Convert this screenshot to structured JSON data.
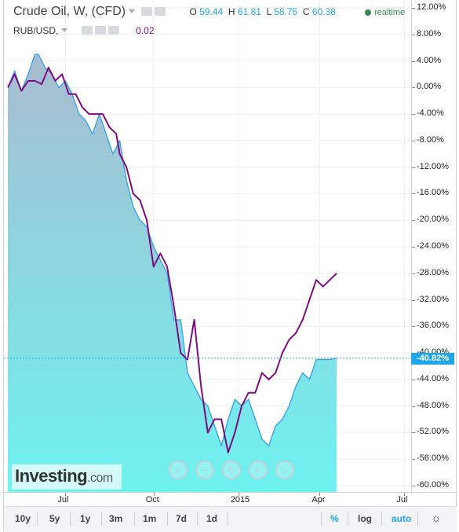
{
  "legend": {
    "symbol": "Crude Oil, W, (CFD)",
    "ohlc": [
      {
        "key": "O",
        "value": "59.44"
      },
      {
        "key": "H",
        "value": "61.81"
      },
      {
        "key": "L",
        "value": "58.75"
      },
      {
        "key": "C",
        "value": "60.38"
      }
    ],
    "compare_symbol": "RUB/USD,",
    "compare_value": "0.02",
    "realtime": "realtime"
  },
  "price_tag": "-40.82%",
  "logo": {
    "brand": "Investing",
    "domain": ".com"
  },
  "nav_buttons": [
    "‹",
    "−",
    "↻",
    "+",
    "›"
  ],
  "footer": {
    "ranges": [
      "10y",
      "5y",
      "1y",
      "3m",
      "1m",
      "7d",
      "1d"
    ],
    "right": [
      "%",
      "log",
      "auto"
    ],
    "active": [
      "%",
      "auto"
    ]
  },
  "colors": {
    "oil_line": "#3ea3e0",
    "rub_line": "#7b0d7e",
    "fill_top": "#a9bcd0",
    "fill_bottom": "#6ef2f0",
    "accent": "#1ea7e8"
  },
  "chart_data": {
    "type": "line",
    "title": "",
    "y_axis_ticks": [
      "12.00%",
      "8.00%",
      "4.00%",
      "0.00%",
      "-4.00%",
      "-8.00%",
      "-12.00%",
      "-16.00%",
      "-20.00%",
      "-24.00%",
      "-28.00%",
      "-32.00%",
      "-36.00%",
      "-40.00%",
      "-44.00%",
      "-48.00%",
      "-52.00%",
      "-56.00%",
      "-60.00%"
    ],
    "x_axis_ticks": [
      "Jul",
      "Oct",
      "2015",
      "Apr",
      "Jul"
    ],
    "ylim": [
      -61.5,
      13
    ],
    "xlim": [
      0,
      119
    ],
    "x_ticks_pos": [
      17,
      43,
      68,
      92,
      117
    ],
    "series": [
      {
        "name": "Crude Oil, W, (CFD)",
        "x": [
          0,
          2,
          4,
          6,
          8,
          9,
          11,
          13,
          15,
          17,
          19,
          21,
          23,
          25,
          27,
          29,
          31,
          33,
          35,
          37,
          39,
          41,
          43,
          45,
          47,
          49,
          51,
          53,
          55,
          57,
          59,
          61,
          63,
          65,
          67,
          69,
          71,
          73,
          75,
          77,
          79,
          81,
          83,
          85,
          87,
          89,
          91,
          93,
          95,
          97
        ],
        "values": [
          0,
          2.5,
          -0.5,
          2,
          5,
          5,
          3,
          2,
          0,
          1,
          -1,
          -4,
          -5,
          -7,
          -4,
          -7,
          -10,
          -8,
          -14,
          -18,
          -20,
          -21,
          -24,
          -26,
          -28,
          -35,
          -35,
          -43,
          -45,
          -47,
          -48,
          -51,
          -54,
          -50,
          -47,
          -48,
          -47,
          -50,
          -53,
          -54,
          -51,
          -50,
          -48,
          -45,
          -43,
          -44,
          -41,
          -41,
          -41,
          -40.8
        ]
      },
      {
        "name": "RUB/USD,",
        "x": [
          0,
          2,
          4,
          6,
          8,
          10,
          12,
          14,
          16,
          18,
          20,
          22,
          24,
          26,
          28,
          30,
          32,
          33,
          35,
          37,
          39,
          41,
          43,
          45,
          47,
          49,
          51,
          53,
          55,
          57,
          59,
          61,
          63,
          65,
          67,
          69,
          71,
          73,
          75,
          77,
          79,
          81,
          83,
          85,
          87,
          89,
          91,
          93,
          95,
          97
        ],
        "values": [
          0,
          2,
          -0.5,
          1,
          1,
          0.5,
          3,
          1,
          2,
          -1,
          -1,
          -3,
          -4,
          -4,
          -4,
          -6,
          -7,
          -10,
          -12,
          -16,
          -17,
          -20,
          -27,
          -25,
          -27,
          -33,
          -40,
          -41,
          -35,
          -45,
          -52,
          -50,
          -50,
          -55,
          -52,
          -48,
          -46,
          -46,
          -43,
          -44,
          -43,
          -40,
          -38,
          -37,
          -35,
          -32,
          -29,
          -30,
          -29,
          -28
        ]
      }
    ]
  }
}
